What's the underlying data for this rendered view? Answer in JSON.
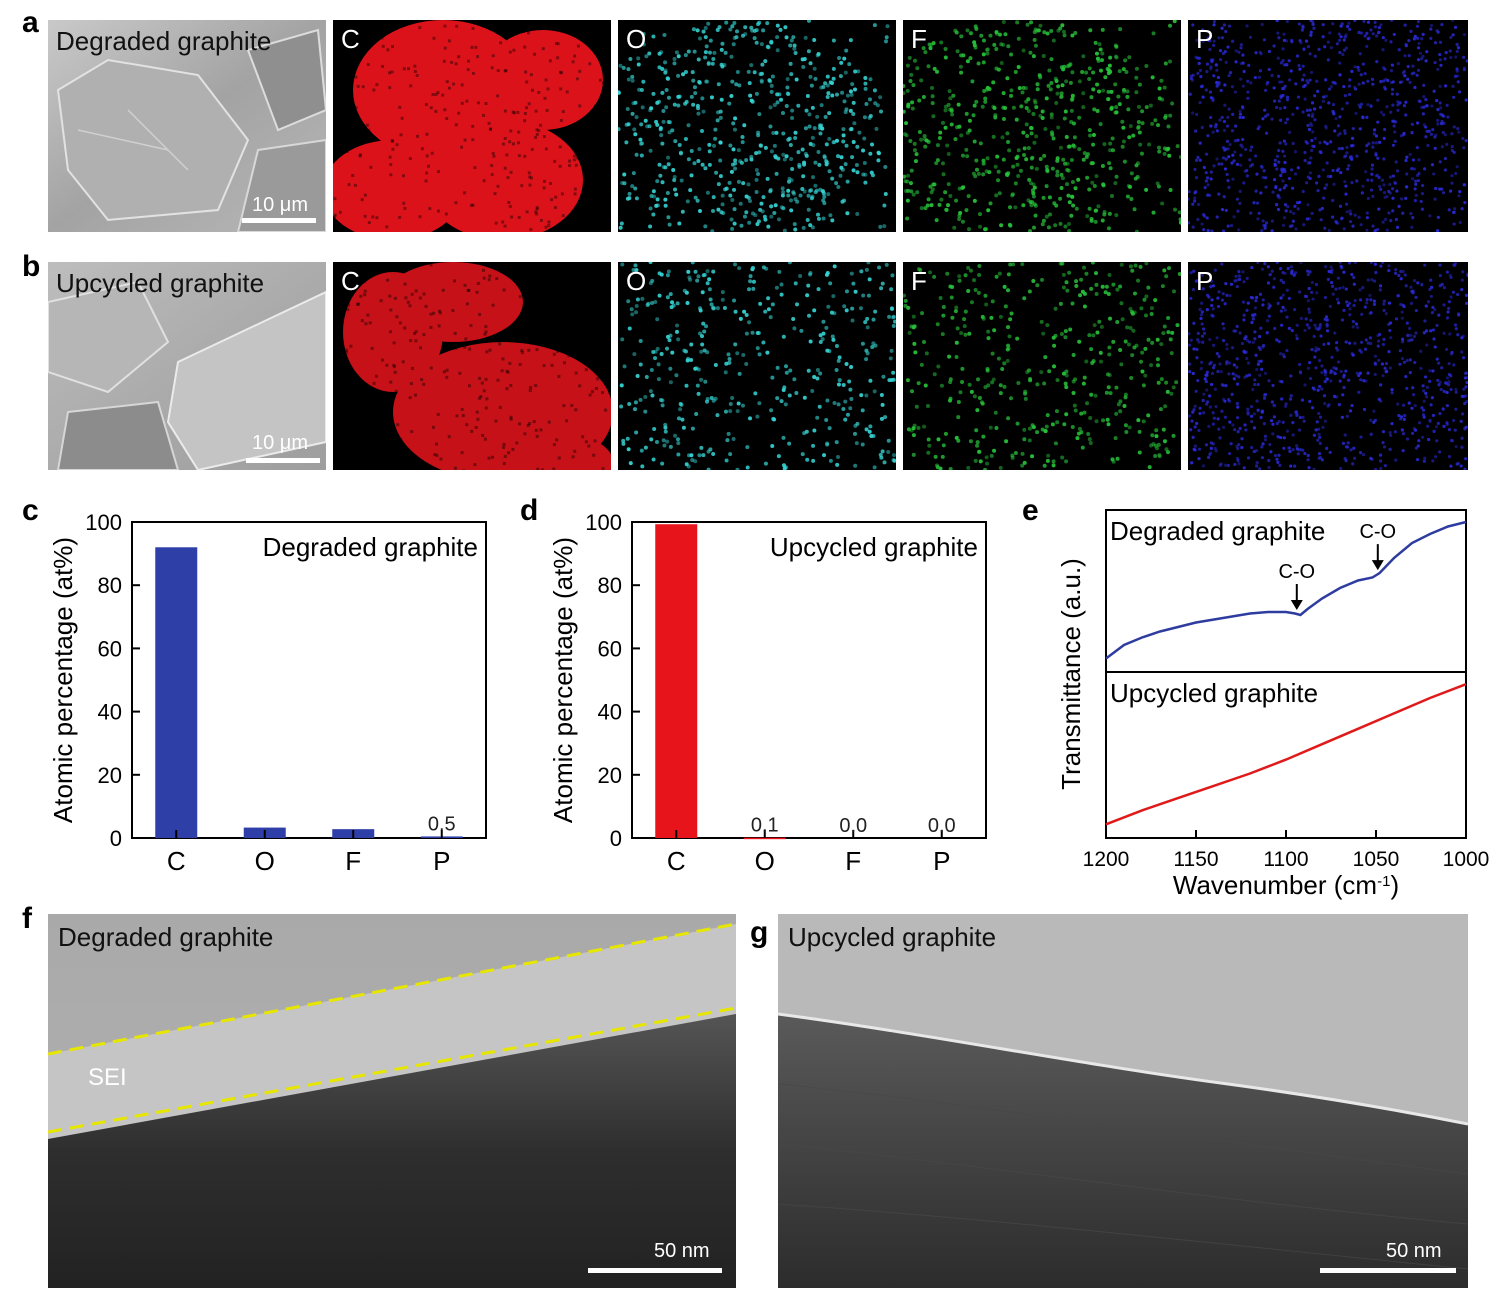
{
  "panel_letters": {
    "a": "a",
    "b": "b",
    "c": "c",
    "d": "d",
    "e": "e",
    "f": "f",
    "g": "g"
  },
  "row_a": {
    "sem_title": "Degraded graphite",
    "scale": "10 μm",
    "maps": [
      {
        "element": "C",
        "color": "#e8141c"
      },
      {
        "element": "O",
        "color": "#36d6d6"
      },
      {
        "element": "F",
        "color": "#27c43a"
      },
      {
        "element": "P",
        "color": "#2a2ad8"
      }
    ]
  },
  "row_b": {
    "sem_title": "Upcycled graphite",
    "scale": "10 μm",
    "maps": [
      {
        "element": "C",
        "color": "#e8141c"
      },
      {
        "element": "O",
        "color": "#36d6d6"
      },
      {
        "element": "F",
        "color": "#27c43a"
      },
      {
        "element": "P",
        "color": "#2a2ad8"
      }
    ]
  },
  "chart_data": [
    {
      "id": "c",
      "type": "bar",
      "title": "Degraded graphite",
      "xlabel": "",
      "ylabel": "Atomic percentage (at%)",
      "categories": [
        "C",
        "O",
        "F",
        "P"
      ],
      "values": [
        92,
        3.3,
        2.8,
        0.5
      ],
      "value_labels": [
        "",
        "",
        "",
        "0.5"
      ],
      "ylim": [
        0,
        100
      ],
      "yticks": [
        0,
        20,
        40,
        60,
        80,
        100
      ],
      "color": "#2e40a8"
    },
    {
      "id": "d",
      "type": "bar",
      "title": "Upcycled graphite",
      "xlabel": "",
      "ylabel": "Atomic percentage (at%)",
      "categories": [
        "C",
        "O",
        "F",
        "P"
      ],
      "values": [
        99.3,
        0.1,
        0.0,
        0.0
      ],
      "value_labels": [
        "",
        "0.1",
        "0.0",
        "0.0"
      ],
      "ylim": [
        0,
        100
      ],
      "yticks": [
        0,
        20,
        40,
        60,
        80,
        100
      ],
      "color": "#e8141c"
    },
    {
      "id": "e",
      "type": "line",
      "xlabel": "Wavenumber (cm",
      "xlabel_sup": "-1",
      "xlabel_end": ")",
      "ylabel": "Transmittance (a.u.)",
      "xlim": [
        1200,
        1000
      ],
      "xticks": [
        1200,
        1150,
        1100,
        1050,
        1000
      ],
      "series": [
        {
          "name": "Degraded graphite",
          "color": "#2e3ca0",
          "x": [
            1200,
            1190,
            1180,
            1170,
            1160,
            1150,
            1140,
            1130,
            1120,
            1110,
            1100,
            1095,
            1092,
            1088,
            1080,
            1070,
            1060,
            1052,
            1048,
            1040,
            1030,
            1020,
            1010,
            1000
          ],
          "y": [
            0.05,
            0.14,
            0.19,
            0.23,
            0.26,
            0.29,
            0.31,
            0.33,
            0.35,
            0.36,
            0.36,
            0.35,
            0.34,
            0.38,
            0.45,
            0.52,
            0.57,
            0.59,
            0.62,
            0.72,
            0.82,
            0.88,
            0.93,
            0.96
          ]
        },
        {
          "name": "Upcycled graphite",
          "color": "#e01a1a",
          "x": [
            1200,
            1180,
            1160,
            1140,
            1120,
            1100,
            1080,
            1060,
            1040,
            1020,
            1000
          ],
          "y": [
            0.05,
            0.14,
            0.22,
            0.3,
            0.38,
            0.47,
            0.57,
            0.67,
            0.77,
            0.87,
            0.96
          ]
        }
      ],
      "annotations": [
        {
          "text": "C-O",
          "x": 1094
        },
        {
          "text": "C-O",
          "x": 1049
        }
      ]
    }
  ],
  "row_fg": {
    "f_title": "Degraded graphite",
    "f_sei": "SEI",
    "f_scale": "50 nm",
    "g_title": "Upcycled graphite",
    "g_scale": "50 nm"
  }
}
